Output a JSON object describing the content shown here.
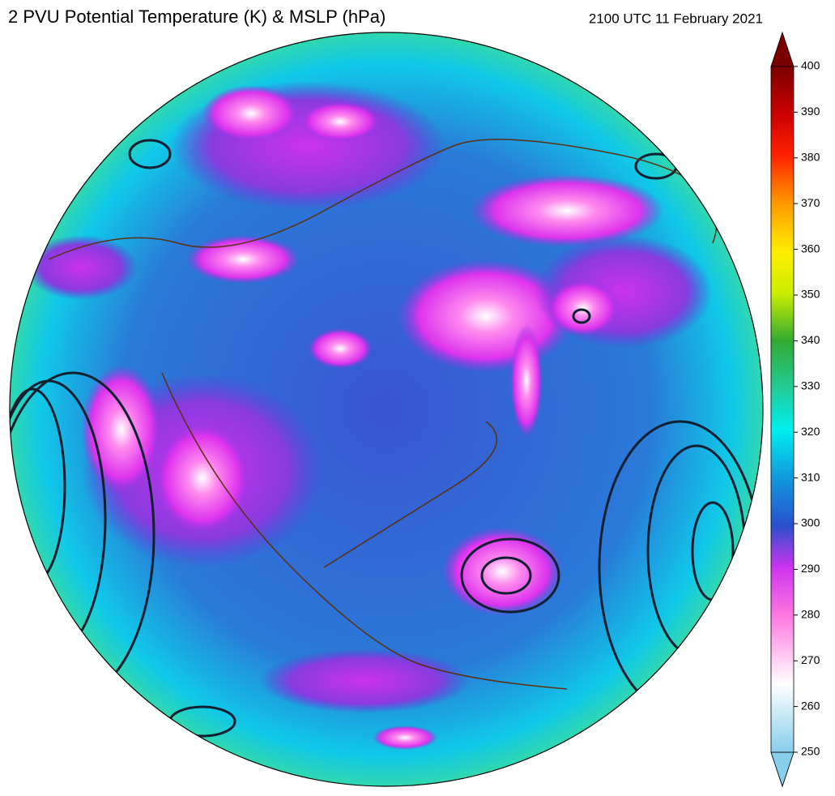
{
  "title": "2 PVU Potential Temperature (K) & MSLP (hPa)",
  "timestamp": "2100 UTC 11 February 2021",
  "colorbar": {
    "lim": [
      250,
      400
    ],
    "ticks": [
      250,
      260,
      270,
      280,
      290,
      300,
      310,
      320,
      330,
      340,
      350,
      360,
      370,
      380,
      390,
      400
    ]
  }
}
